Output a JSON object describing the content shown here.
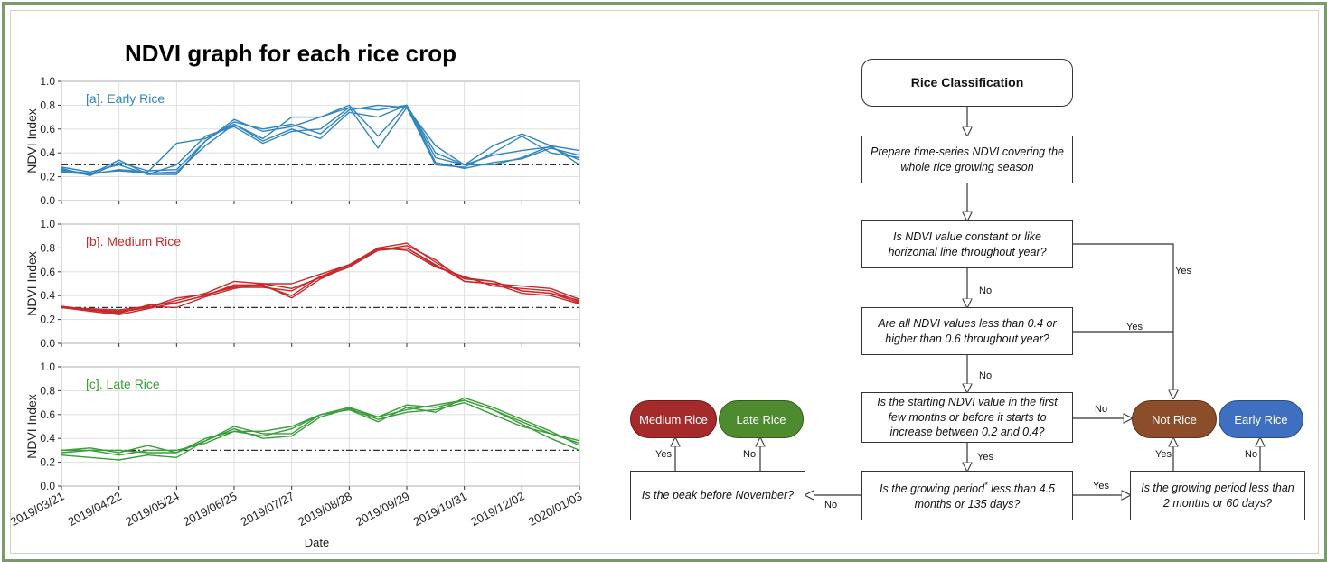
{
  "title": "NDVI graph for each rice crop",
  "chart_data": [
    {
      "type": "line",
      "panel_label": "[a]. Early Rice",
      "ylabel": "NDVI Index",
      "ylim": [
        0.0,
        1.0
      ],
      "yticks": [
        "0.0",
        "0.2",
        "0.4",
        "0.6",
        "0.8",
        "1.0"
      ],
      "threshold": 0.3,
      "x": [
        "2019/03/21",
        "2019/04/06",
        "2019/04/22",
        "2019/05/08",
        "2019/05/24",
        "2019/06/09",
        "2019/06/25",
        "2019/07/11",
        "2019/07/27",
        "2019/08/12",
        "2019/08/28",
        "2019/09/13",
        "2019/09/29",
        "2019/10/15",
        "2019/10/31",
        "2019/11/16",
        "2019/12/02",
        "2019/12/18",
        "2020/01/03"
      ],
      "series": [
        {
          "values": [
            0.26,
            0.22,
            0.34,
            0.22,
            0.22,
            0.5,
            0.68,
            0.58,
            0.62,
            0.7,
            0.78,
            0.76,
            0.8,
            0.36,
            0.3,
            0.46,
            0.56,
            0.46,
            0.42
          ]
        },
        {
          "values": [
            0.24,
            0.22,
            0.26,
            0.24,
            0.48,
            0.52,
            0.64,
            0.52,
            0.7,
            0.7,
            0.8,
            0.54,
            0.8,
            0.32,
            0.27,
            0.32,
            0.35,
            0.44,
            0.38
          ]
        },
        {
          "values": [
            0.28,
            0.24,
            0.3,
            0.22,
            0.3,
            0.54,
            0.62,
            0.48,
            0.58,
            0.6,
            0.78,
            0.44,
            0.78,
            0.3,
            0.28,
            0.4,
            0.54,
            0.4,
            0.36
          ]
        },
        {
          "values": [
            0.27,
            0.21,
            0.32,
            0.25,
            0.26,
            0.5,
            0.66,
            0.6,
            0.64,
            0.56,
            0.76,
            0.8,
            0.78,
            0.46,
            0.3,
            0.3,
            0.36,
            0.46,
            0.3
          ]
        },
        {
          "values": [
            0.25,
            0.23,
            0.25,
            0.23,
            0.24,
            0.46,
            0.64,
            0.5,
            0.6,
            0.52,
            0.74,
            0.7,
            0.8,
            0.4,
            0.3,
            0.38,
            0.42,
            0.45,
            0.34
          ]
        }
      ]
    },
    {
      "type": "line",
      "panel_label": "[b]. Medium Rice",
      "ylabel": "NDVI Index",
      "ylim": [
        0.0,
        1.0
      ],
      "yticks": [
        "0.0",
        "0.2",
        "0.4",
        "0.6",
        "0.8",
        "1.0"
      ],
      "threshold": 0.3,
      "x": [
        "2019/03/21",
        "2019/04/06",
        "2019/04/22",
        "2019/05/08",
        "2019/05/24",
        "2019/06/09",
        "2019/06/25",
        "2019/07/11",
        "2019/07/27",
        "2019/08/12",
        "2019/08/28",
        "2019/09/13",
        "2019/09/29",
        "2019/10/15",
        "2019/10/31",
        "2019/11/16",
        "2019/12/02",
        "2019/12/18",
        "2020/01/03"
      ],
      "series": [
        {
          "values": [
            0.31,
            0.28,
            0.26,
            0.3,
            0.36,
            0.42,
            0.52,
            0.5,
            0.5,
            0.58,
            0.66,
            0.8,
            0.84,
            0.68,
            0.54,
            0.52,
            0.44,
            0.42,
            0.36
          ]
        },
        {
          "values": [
            0.3,
            0.27,
            0.24,
            0.29,
            0.34,
            0.4,
            0.48,
            0.48,
            0.4,
            0.56,
            0.64,
            0.78,
            0.8,
            0.66,
            0.52,
            0.5,
            0.42,
            0.4,
            0.33
          ]
        },
        {
          "values": [
            0.3,
            0.29,
            0.28,
            0.31,
            0.3,
            0.39,
            0.46,
            0.5,
            0.46,
            0.55,
            0.64,
            0.8,
            0.78,
            0.64,
            0.56,
            0.48,
            0.46,
            0.44,
            0.35
          ]
        },
        {
          "values": [
            0.31,
            0.28,
            0.27,
            0.3,
            0.38,
            0.41,
            0.47,
            0.47,
            0.44,
            0.56,
            0.66,
            0.78,
            0.82,
            0.7,
            0.52,
            0.5,
            0.48,
            0.46,
            0.37
          ]
        },
        {
          "values": [
            0.3,
            0.28,
            0.25,
            0.32,
            0.34,
            0.4,
            0.49,
            0.49,
            0.38,
            0.54,
            0.65,
            0.79,
            0.8,
            0.65,
            0.55,
            0.52,
            0.44,
            0.42,
            0.34
          ]
        }
      ]
    },
    {
      "type": "line",
      "panel_label": "[c]. Late Rice",
      "ylabel": "NDVI Index",
      "xlabel": "Date",
      "ylim": [
        0.0,
        1.0
      ],
      "yticks": [
        "0.0",
        "0.2",
        "0.4",
        "0.6",
        "0.8",
        "1.0"
      ],
      "threshold": 0.3,
      "x": [
        "2019/03/21",
        "2019/04/06",
        "2019/04/22",
        "2019/05/08",
        "2019/05/24",
        "2019/06/09",
        "2019/06/25",
        "2019/07/11",
        "2019/07/27",
        "2019/08/12",
        "2019/08/28",
        "2019/09/13",
        "2019/09/29",
        "2019/10/15",
        "2019/10/31",
        "2019/11/16",
        "2019/12/02",
        "2019/12/18",
        "2020/01/03"
      ],
      "series": [
        {
          "values": [
            0.3,
            0.32,
            0.28,
            0.34,
            0.28,
            0.38,
            0.5,
            0.44,
            0.44,
            0.6,
            0.66,
            0.58,
            0.68,
            0.66,
            0.72,
            0.64,
            0.54,
            0.44,
            0.38
          ]
        },
        {
          "values": [
            0.28,
            0.3,
            0.26,
            0.3,
            0.3,
            0.36,
            0.46,
            0.42,
            0.48,
            0.6,
            0.64,
            0.54,
            0.66,
            0.62,
            0.74,
            0.66,
            0.56,
            0.46,
            0.34
          ]
        },
        {
          "values": [
            0.26,
            0.24,
            0.22,
            0.26,
            0.24,
            0.38,
            0.48,
            0.4,
            0.42,
            0.58,
            0.65,
            0.56,
            0.62,
            0.64,
            0.7,
            0.6,
            0.5,
            0.44,
            0.36
          ]
        },
        {
          "values": [
            0.3,
            0.3,
            0.3,
            0.28,
            0.28,
            0.4,
            0.46,
            0.46,
            0.5,
            0.6,
            0.64,
            0.58,
            0.64,
            0.68,
            0.72,
            0.64,
            0.52,
            0.4,
            0.3
          ]
        }
      ]
    }
  ],
  "x_tick_labels": [
    "2019/03/21",
    "2019/04/22",
    "2019/05/24",
    "2019/06/25",
    "2019/07/27",
    "2019/08/28",
    "2019/09/29",
    "2019/10/31",
    "2019/12/02",
    "2020/01/03"
  ],
  "flowchart": {
    "start": "Rice Classification",
    "prepare": "Prepare time-series NDVI covering the whole rice growing season",
    "q_constant": "Is NDVI value constant or like horizontal line throughout year?",
    "q_range": "Are all NDVI values less than 0.4 or higher than 0.6 throughout year?",
    "q_start": "Is the starting NDVI value in the first few months or before it starts to increase between 0.2 and 0.4?",
    "q_growing": "Is the growing period* less than 4.5 months or 135 days?",
    "q_peak": "Is the peak before November?",
    "q_short": "Is the growing period less than 2 months or 60 days?",
    "result_medium": "Medium Rice",
    "result_late": "Late Rice",
    "result_not": "Not Rice",
    "result_early": "Early Rice",
    "yes": "Yes",
    "no": "No",
    "colors": {
      "medium": "#a52a2a",
      "late": "#4e8a2e",
      "not": "#8b4d2a",
      "early": "#3f6fbf"
    }
  },
  "colors": {
    "early": "#2f86c1",
    "medium": "#c8292b",
    "late": "#3a9e3a"
  }
}
